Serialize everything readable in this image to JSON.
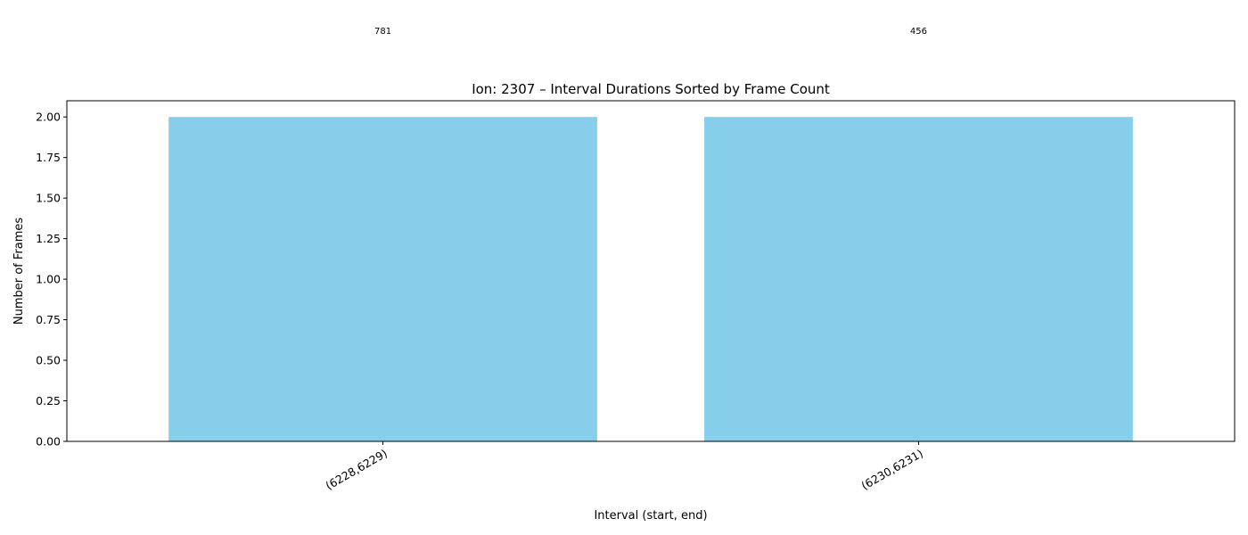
{
  "chart_data": {
    "type": "bar",
    "title": "Ion: 2307 – Interval Durations Sorted by Frame Count",
    "xlabel": "Interval (start, end)",
    "ylabel": "Number of Frames",
    "categories": [
      "(6228,6229)",
      "(6230,6231)"
    ],
    "values": [
      2,
      2
    ],
    "data_labels": [
      "781",
      "456"
    ],
    "ylim": [
      0,
      2.1
    ],
    "yticks": [
      "0.00",
      "0.25",
      "0.50",
      "0.75",
      "1.00",
      "1.25",
      "1.50",
      "1.75",
      "2.00"
    ],
    "grid": false,
    "legend": "none",
    "bar_color": "#87CEEB"
  }
}
